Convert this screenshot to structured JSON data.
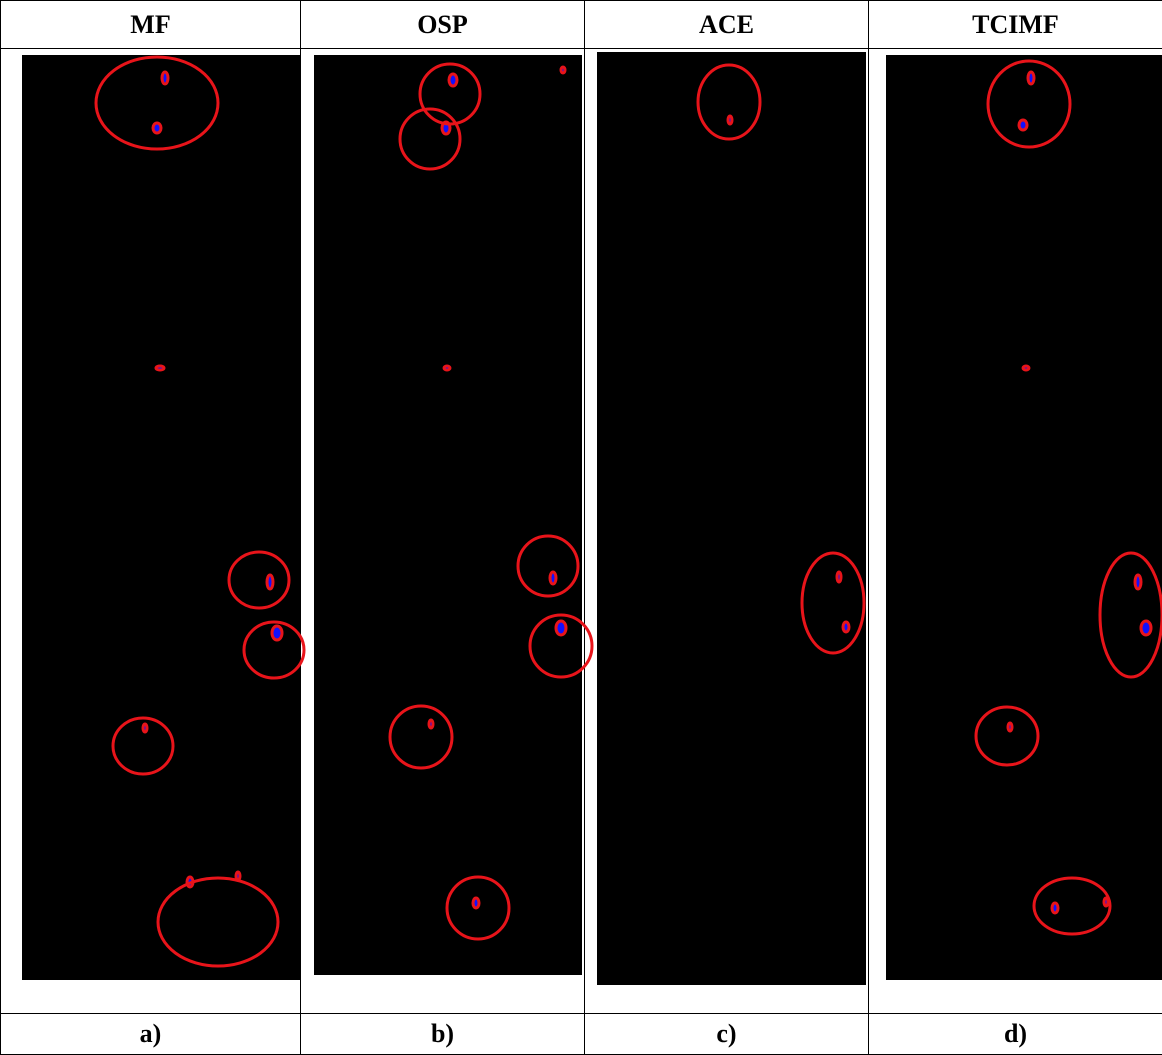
{
  "table": {
    "header": [
      "MF",
      "OSP",
      "ACE",
      "TCIMF"
    ],
    "captions": [
      "a)",
      "b)",
      "c)",
      "d)"
    ]
  }
}
